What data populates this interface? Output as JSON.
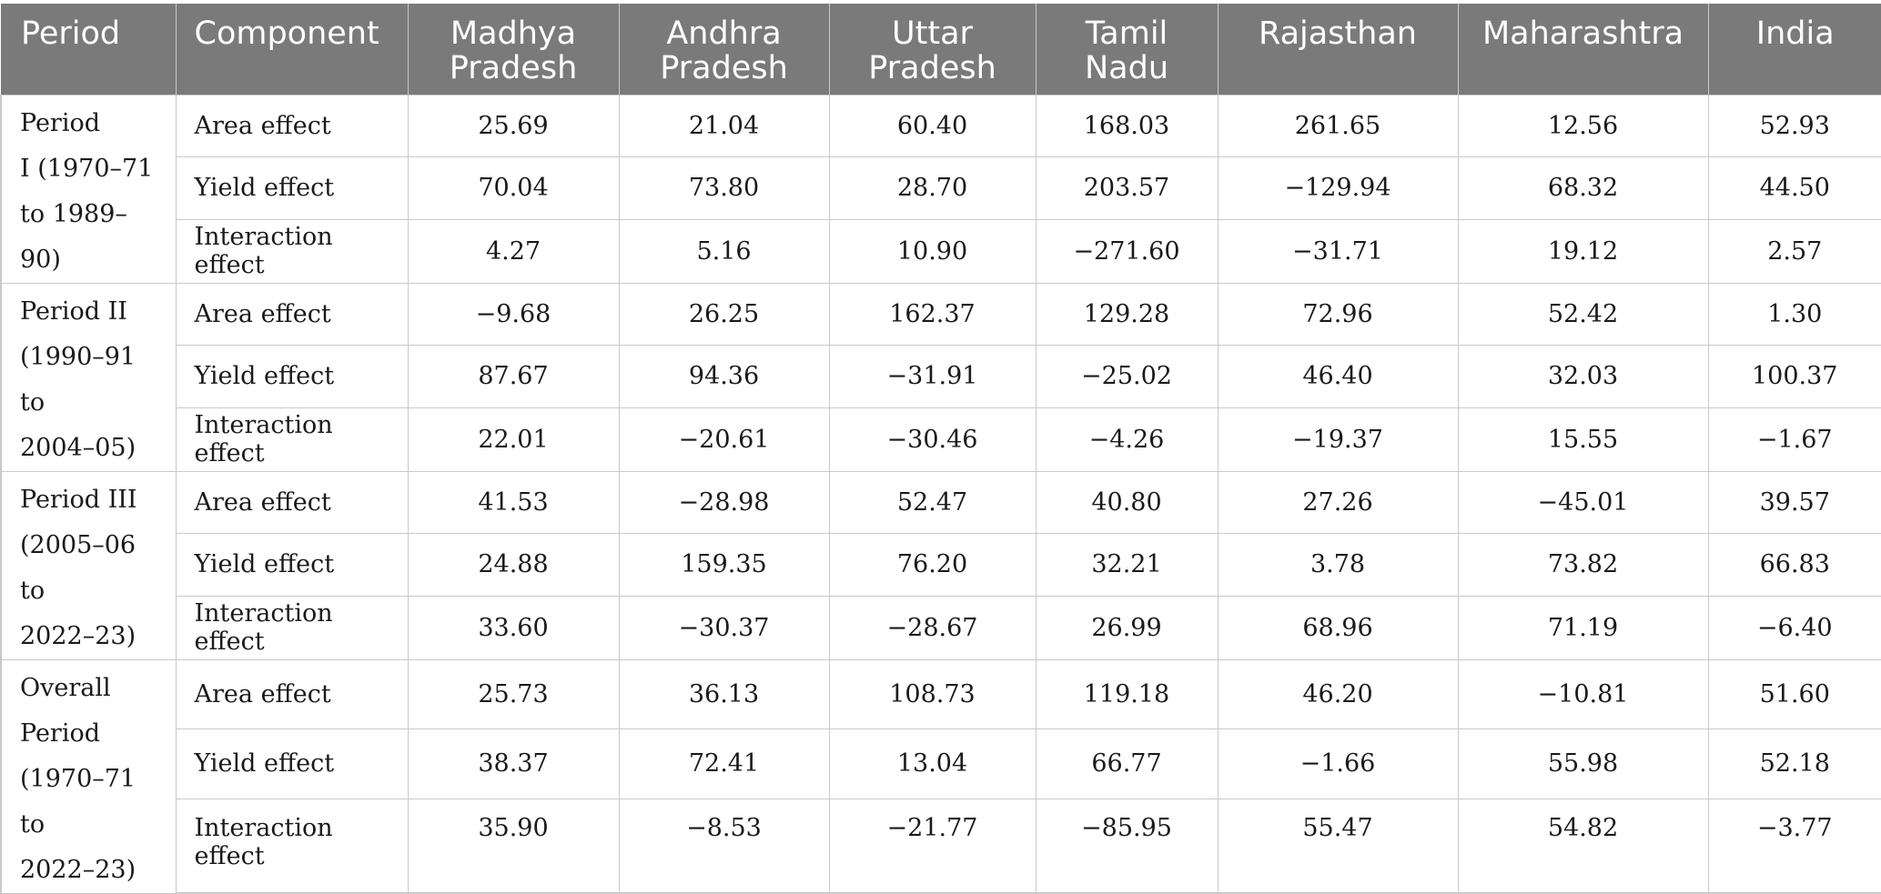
{
  "table": {
    "headers": {
      "period": "Period",
      "component": "Component",
      "states": [
        {
          "line1": "Madhya",
          "line2": "Pradesh"
        },
        {
          "line1": "Andhra",
          "line2": "Pradesh"
        },
        {
          "line1": "Uttar",
          "line2": "Pradesh"
        },
        {
          "line1": "Tamil",
          "line2": "Nadu"
        },
        {
          "line1": "Rajasthan",
          "line2": ""
        },
        {
          "line1": "Maharashtra",
          "line2": ""
        },
        {
          "line1": "India",
          "line2": ""
        }
      ]
    },
    "groups": [
      {
        "period_lines": [
          "Period",
          "I (1970–71",
          "to 1989–90)"
        ],
        "rows": [
          {
            "component": "Area effect",
            "values": [
              "25.69",
              "21.04",
              "60.40",
              "168.03",
              "261.65",
              "12.56",
              "52.93"
            ]
          },
          {
            "component": "Yield effect",
            "values": [
              "70.04",
              "73.80",
              "28.70",
              "203.57",
              "−129.94",
              "68.32",
              "44.50"
            ]
          },
          {
            "component": "Interaction effect",
            "values": [
              "4.27",
              "5.16",
              "10.90",
              "−271.60",
              "−31.71",
              "19.12",
              "2.57"
            ]
          }
        ]
      },
      {
        "period_lines": [
          "Period II",
          "(1990–91 to",
          "2004–05)"
        ],
        "rows": [
          {
            "component": "Area effect",
            "values": [
              "−9.68",
              "26.25",
              "162.37",
              "129.28",
              "72.96",
              "52.42",
              "1.30"
            ]
          },
          {
            "component": "Yield effect",
            "values": [
              "87.67",
              "94.36",
              "−31.91",
              "−25.02",
              "46.40",
              "32.03",
              "100.37"
            ]
          },
          {
            "component": "Interaction effect",
            "values": [
              "22.01",
              "−20.61",
              "−30.46",
              "−4.26",
              "−19.37",
              "15.55",
              "−1.67"
            ]
          }
        ]
      },
      {
        "period_lines": [
          "Period III",
          "(2005–06 to",
          "2022–23)"
        ],
        "rows": [
          {
            "component": "Area effect",
            "values": [
              "41.53",
              "−28.98",
              "52.47",
              "40.80",
              "27.26",
              "−45.01",
              "39.57"
            ]
          },
          {
            "component": "Yield effect",
            "values": [
              "24.88",
              "159.35",
              "76.20",
              "32.21",
              "3.78",
              "73.82",
              "66.83"
            ]
          },
          {
            "component": "Interaction effect",
            "values": [
              "33.60",
              "−30.37",
              "−28.67",
              "26.99",
              "68.96",
              "71.19",
              "−6.40"
            ]
          }
        ]
      },
      {
        "period_lines": [
          "Overall",
          "Period",
          "(1970–71 to",
          "2022–23)"
        ],
        "rows": [
          {
            "component": "Area effect",
            "values": [
              "25.73",
              "36.13",
              "108.73",
              "119.18",
              "46.20",
              "−10.81",
              "51.60"
            ]
          },
          {
            "component": "Yield effect",
            "values": [
              "38.37",
              "72.41",
              "13.04",
              "66.77",
              "−1.66",
              "55.98",
              "52.18"
            ]
          },
          {
            "component": "Interaction effect",
            "values": [
              "35.90",
              "−8.53",
              "−21.77",
              "−85.95",
              "55.47",
              "54.82",
              "−3.77"
            ]
          }
        ]
      }
    ]
  }
}
